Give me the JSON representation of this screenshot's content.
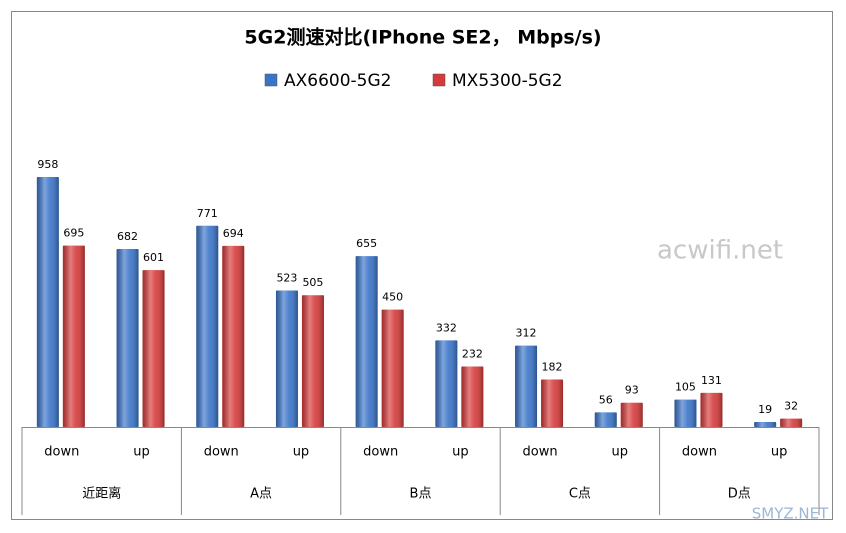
{
  "chart_data": {
    "type": "bar",
    "title": "5G2测速对比(IPhone SE2， Mbps/s)",
    "categories": [
      "down",
      "up",
      "down",
      "up",
      "down",
      "up",
      "down",
      "up",
      "down",
      "up"
    ],
    "groups": [
      "近距离",
      "A点",
      "B点",
      "C点",
      "D点"
    ],
    "series": [
      {
        "name": "AX6600-5G2",
        "color": "#3a74c9",
        "values": [
          958,
          682,
          771,
          523,
          655,
          332,
          312,
          56,
          105,
          19
        ]
      },
      {
        "name": "MX5300-5G2",
        "color": "#d63a3a",
        "values": [
          695,
          601,
          694,
          505,
          450,
          232,
          182,
          93,
          131,
          32
        ]
      }
    ],
    "watermarks": [
      "acwifi.net",
      "SMYZ.NET"
    ]
  }
}
